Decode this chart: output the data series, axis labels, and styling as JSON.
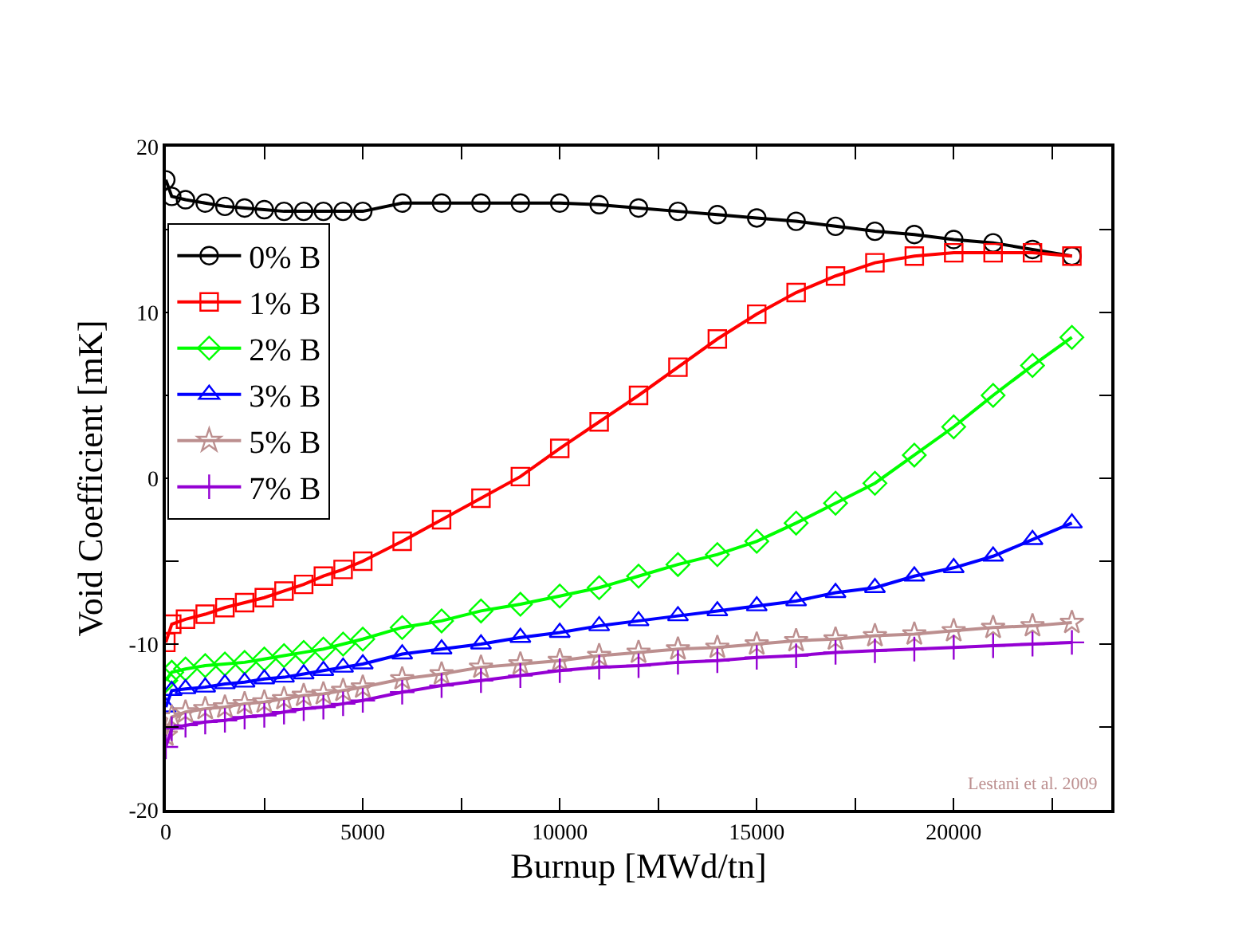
{
  "chart_data": {
    "type": "line",
    "xlabel": "Burnup [MWd/tn]",
    "ylabel": "Void Coefficient [mK]",
    "x": [
      0,
      150,
      500,
      1000,
      1500,
      2000,
      2500,
      3000,
      3500,
      4000,
      4500,
      5000,
      6000,
      7000,
      8000,
      9000,
      10000,
      11000,
      12000,
      13000,
      14000,
      15000,
      16000,
      17000,
      18000,
      19000,
      20000,
      21000,
      22000,
      23000
    ],
    "series": [
      {
        "name": "0% B",
        "color": "#000000",
        "marker": "circle",
        "values": [
          18.0,
          17.0,
          16.8,
          16.6,
          16.4,
          16.3,
          16.2,
          16.1,
          16.1,
          16.1,
          16.1,
          16.1,
          16.6,
          16.6,
          16.6,
          16.6,
          16.6,
          16.5,
          16.3,
          16.1,
          15.9,
          15.7,
          15.5,
          15.2,
          14.9,
          14.7,
          14.4,
          14.2,
          13.8,
          13.4
        ]
      },
      {
        "name": "1% B",
        "color": "#ff0000",
        "marker": "square",
        "values": [
          -9.9,
          -8.8,
          -8.5,
          -8.2,
          -7.8,
          -7.5,
          -7.2,
          -6.8,
          -6.4,
          -5.9,
          -5.5,
          -5.0,
          -3.8,
          -2.5,
          -1.2,
          0.1,
          1.8,
          3.4,
          5.0,
          6.7,
          8.4,
          9.9,
          11.2,
          12.2,
          13.0,
          13.4,
          13.6,
          13.6,
          13.6,
          13.4
        ]
      },
      {
        "name": "2% B",
        "color": "#00ff00",
        "marker": "diamond",
        "values": [
          -12.2,
          -11.7,
          -11.5,
          -11.3,
          -11.2,
          -11.1,
          -10.9,
          -10.7,
          -10.5,
          -10.3,
          -10.0,
          -9.7,
          -9.0,
          -8.6,
          -8.0,
          -7.6,
          -7.1,
          -6.6,
          -5.9,
          -5.2,
          -4.6,
          -3.8,
          -2.7,
          -1.5,
          -0.3,
          1.4,
          3.1,
          5.0,
          6.8,
          8.5
        ]
      },
      {
        "name": "3% B",
        "color": "#0000ff",
        "marker": "triangle",
        "values": [
          -13.8,
          -12.8,
          -12.7,
          -12.6,
          -12.4,
          -12.3,
          -12.1,
          -12.0,
          -11.8,
          -11.6,
          -11.4,
          -11.2,
          -10.6,
          -10.3,
          -10.0,
          -9.6,
          -9.3,
          -8.9,
          -8.6,
          -8.3,
          -8.0,
          -7.7,
          -7.4,
          -6.9,
          -6.6,
          -5.9,
          -5.4,
          -4.7,
          -3.7,
          -2.7
        ]
      },
      {
        "name": "5% B",
        "color": "#bc8f8f",
        "marker": "star",
        "values": [
          -15.5,
          -14.4,
          -14.1,
          -13.9,
          -13.8,
          -13.6,
          -13.5,
          -13.3,
          -13.1,
          -13.0,
          -12.8,
          -12.6,
          -12.1,
          -11.8,
          -11.4,
          -11.2,
          -11.0,
          -10.7,
          -10.5,
          -10.3,
          -10.2,
          -10.0,
          -9.8,
          -9.7,
          -9.5,
          -9.4,
          -9.2,
          -9.0,
          -8.9,
          -8.7
        ]
      },
      {
        "name": "7% B",
        "color": "#9400d3",
        "marker": "cross",
        "values": [
          -16.2,
          -15.1,
          -14.9,
          -14.7,
          -14.6,
          -14.4,
          -14.3,
          -14.1,
          -13.9,
          -13.8,
          -13.6,
          -13.4,
          -12.9,
          -12.5,
          -12.2,
          -11.9,
          -11.6,
          -11.4,
          -11.3,
          -11.1,
          -11.0,
          -10.8,
          -10.7,
          -10.5,
          -10.4,
          -10.3,
          -10.2,
          -10.1,
          -10.0,
          -9.9
        ]
      }
    ],
    "xlim": [
      0,
      24000
    ],
    "xticks": [
      0,
      {
        "value": 2500,
        "label": null
      },
      5000,
      {
        "value": 7500,
        "label": null
      },
      10000,
      {
        "value": 12500,
        "label": null
      },
      15000,
      {
        "value": 17500,
        "label": null
      },
      20000,
      {
        "value": 22500,
        "label": null
      }
    ],
    "ylim": [
      -20,
      20
    ],
    "yticks": [
      -20,
      {
        "value": -15,
        "label": null
      },
      -10,
      {
        "value": -5,
        "label": null
      },
      0,
      {
        "value": 5,
        "label": null
      },
      10,
      {
        "value": 15,
        "label": null
      },
      20
    ],
    "annotations": [
      "Lestani et al. 2009"
    ],
    "legend": "top left",
    "line_style": "solid"
  }
}
